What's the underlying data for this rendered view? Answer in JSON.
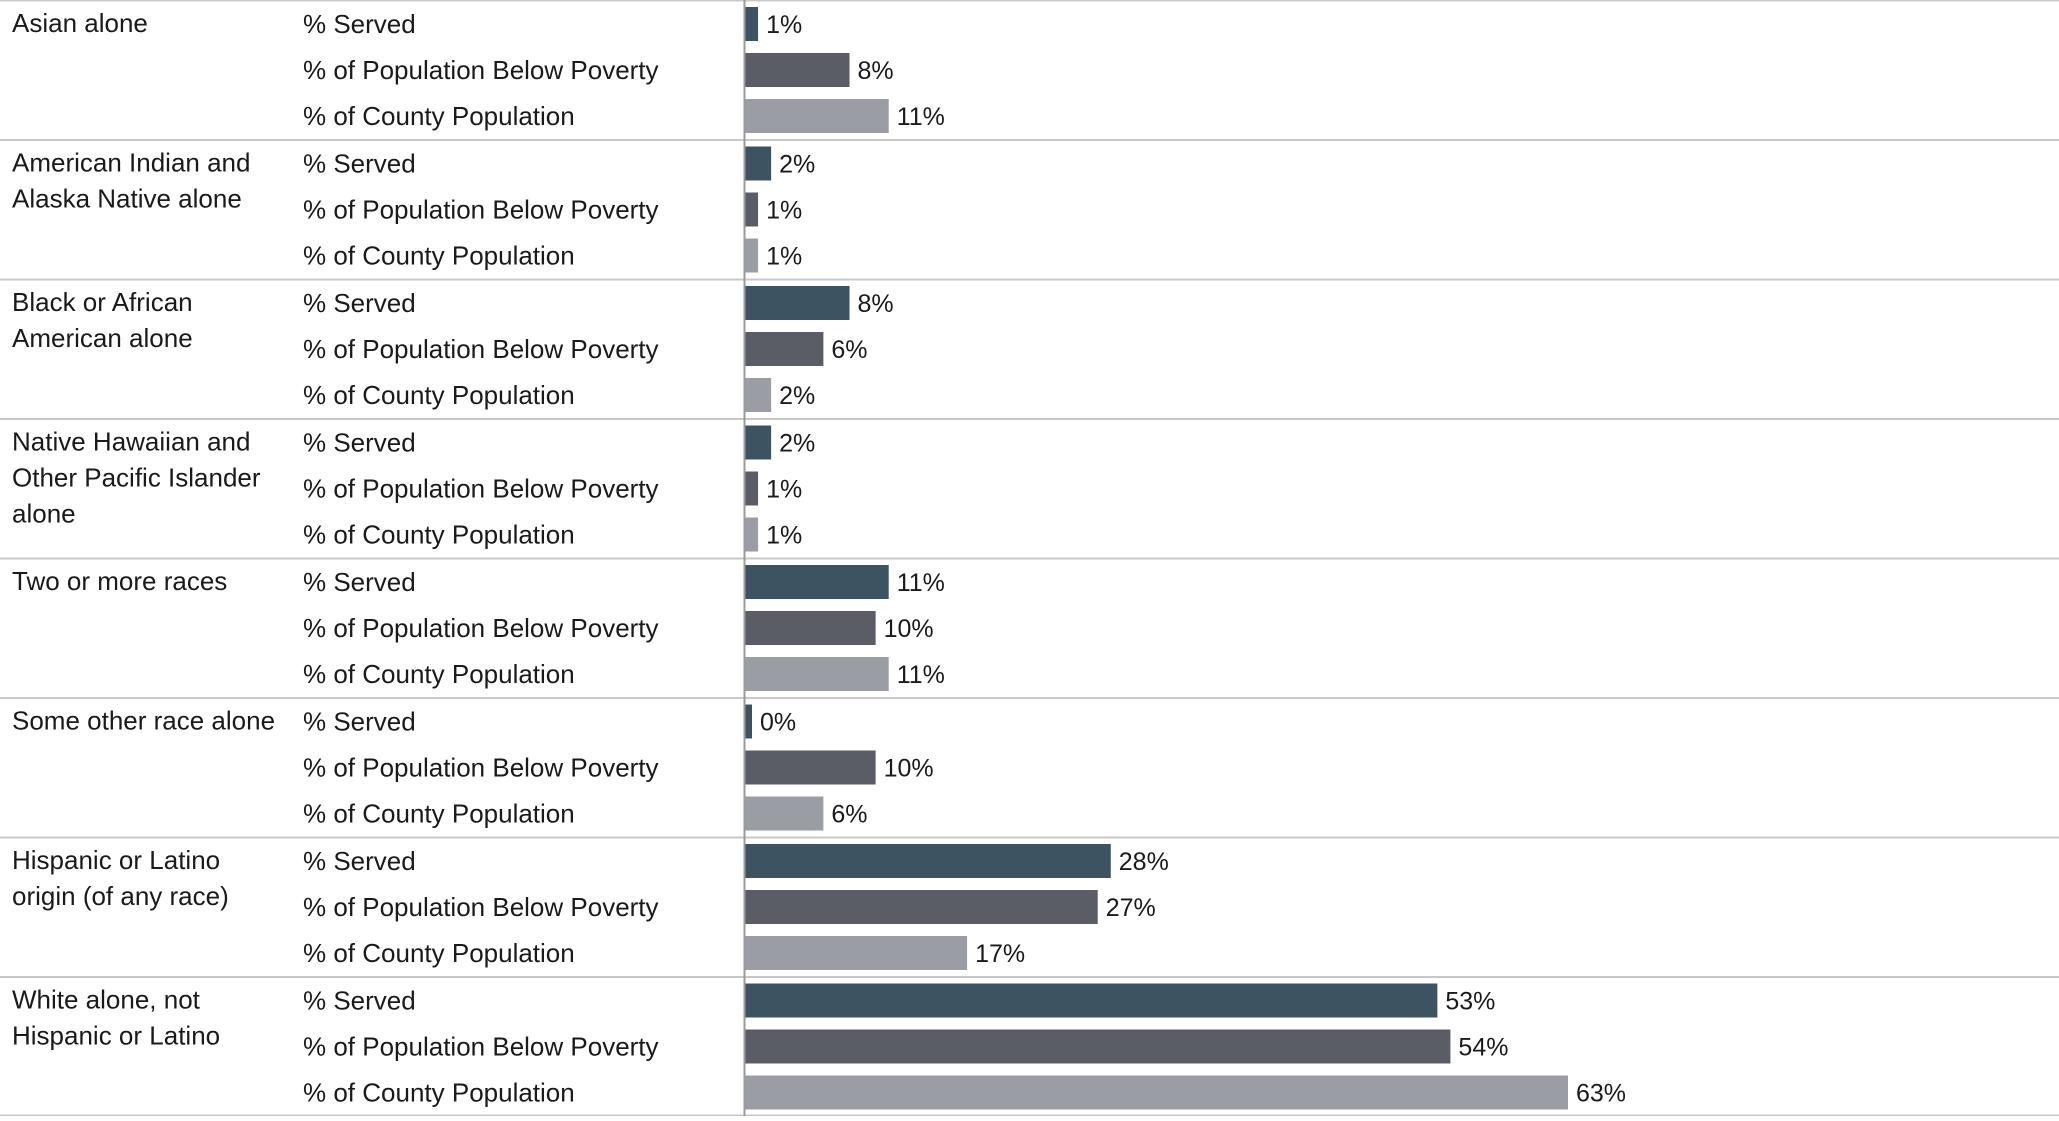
{
  "chart_data": {
    "type": "bar",
    "orientation": "horizontal",
    "grid": false,
    "legend": "none",
    "metrics": [
      "% Served",
      "% of Population Below Poverty",
      "% of County Population"
    ],
    "colors": {
      "% Served": "#3d5361",
      "% of Population Below Poverty": "#5a5d66",
      "% of County Population": "#9a9da3",
      "divider": "#c8c8c8",
      "axis": "#9a9a9a"
    },
    "xlim": [
      0,
      63
    ],
    "groups": [
      {
        "label_lines": [
          "Asian alone"
        ],
        "values": [
          1,
          8,
          11
        ],
        "value_labels": [
          "1%",
          "8%",
          "11%"
        ]
      },
      {
        "label_lines": [
          "American Indian and",
          "Alaska Native alone"
        ],
        "values": [
          2,
          1,
          1
        ],
        "value_labels": [
          "2%",
          "1%",
          "1%"
        ]
      },
      {
        "label_lines": [
          "Black or African",
          "American alone"
        ],
        "values": [
          8,
          6,
          2
        ],
        "value_labels": [
          "8%",
          "6%",
          "2%"
        ]
      },
      {
        "label_lines": [
          "Native Hawaiian and",
          "Other Pacific Islander",
          "alone"
        ],
        "values": [
          2,
          1,
          1
        ],
        "value_labels": [
          "2%",
          "1%",
          "1%"
        ]
      },
      {
        "label_lines": [
          "Two or more races"
        ],
        "values": [
          11,
          10,
          11
        ],
        "value_labels": [
          "11%",
          "10%",
          "11%"
        ]
      },
      {
        "label_lines": [
          "Some other race alone"
        ],
        "values": [
          0,
          10,
          6
        ],
        "value_labels": [
          "0%",
          "10%",
          "6%"
        ]
      },
      {
        "label_lines": [
          "Hispanic or Latino",
          "origin (of any race)"
        ],
        "values": [
          28,
          27,
          17
        ],
        "value_labels": [
          "28%",
          "27%",
          "17%"
        ]
      },
      {
        "label_lines": [
          "White alone, not",
          "Hispanic or Latino"
        ],
        "values": [
          53,
          54,
          63
        ],
        "value_labels": [
          "53%",
          "54%",
          "63%"
        ]
      }
    ]
  }
}
